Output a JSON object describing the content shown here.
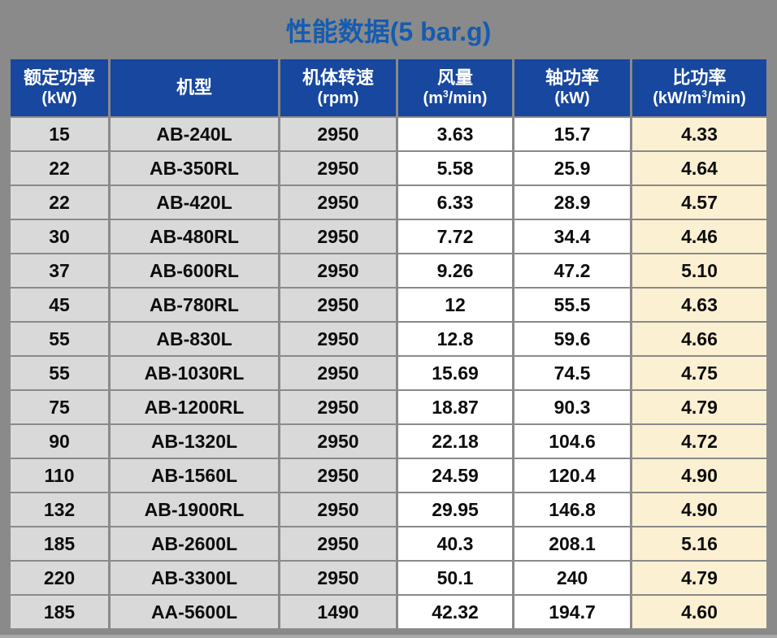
{
  "page": {
    "background_color": "#8a8a8a"
  },
  "title": {
    "text": "性能数据(5 bar.g)",
    "color": "#155CB0"
  },
  "table": {
    "header_bg_color": "#17479E",
    "header_text_color": "#FFFFFF",
    "gray_cell_color": "#D9D9D9",
    "white_cell_color": "#FFFFFF",
    "cream_cell_color": "#FCF0D2",
    "columns": [
      {
        "key": "rated-power",
        "title": "额定功率",
        "unit_pre": "(kW)"
      },
      {
        "key": "model",
        "title": "机型"
      },
      {
        "key": "speed",
        "title": "机体转速",
        "unit_pre": "(rpm)"
      },
      {
        "key": "air-flow",
        "title": "风量",
        "unit_pre": "(m",
        "unit_sup": "3",
        "unit_post": "/min)"
      },
      {
        "key": "shaft-power",
        "title": "轴功率",
        "unit_pre": "(kW)"
      },
      {
        "key": "specific-power",
        "title": "比功率",
        "unit_pre": "(kW/m",
        "unit_sup": "3",
        "unit_post": "/min)"
      }
    ],
    "rows": [
      [
        "15",
        "AB-240L",
        "2950",
        "3.63",
        "15.7",
        "4.33"
      ],
      [
        "22",
        "AB-350RL",
        "2950",
        "5.58",
        "25.9",
        "4.64"
      ],
      [
        "22",
        "AB-420L",
        "2950",
        "6.33",
        "28.9",
        "4.57"
      ],
      [
        "30",
        "AB-480RL",
        "2950",
        "7.72",
        "34.4",
        "4.46"
      ],
      [
        "37",
        "AB-600RL",
        "2950",
        "9.26",
        "47.2",
        "5.10"
      ],
      [
        "45",
        "AB-780RL",
        "2950",
        "12",
        "55.5",
        "4.63"
      ],
      [
        "55",
        "AB-830L",
        "2950",
        "12.8",
        "59.6",
        "4.66"
      ],
      [
        "55",
        "AB-1030RL",
        "2950",
        "15.69",
        "74.5",
        "4.75"
      ],
      [
        "75",
        "AB-1200RL",
        "2950",
        "18.87",
        "90.3",
        "4.79"
      ],
      [
        "90",
        "AB-1320L",
        "2950",
        "22.18",
        "104.6",
        "4.72"
      ],
      [
        "110",
        "AB-1560L",
        "2950",
        "24.59",
        "120.4",
        "4.90"
      ],
      [
        "132",
        "AB-1900RL",
        "2950",
        "29.95",
        "146.8",
        "4.90"
      ],
      [
        "185",
        "AB-2600L",
        "2950",
        "40.3",
        "208.1",
        "5.16"
      ],
      [
        "220",
        "AB-3300L",
        "2950",
        "50.1",
        "240",
        "4.79"
      ],
      [
        "185",
        "AA-5600L",
        "1490",
        "42.32",
        "194.7",
        "4.60"
      ]
    ]
  },
  "chart_data": {
    "type": "table",
    "title": "性能数据(5 bar.g)",
    "columns": [
      "额定功率 (kW)",
      "机型",
      "机体转速 (rpm)",
      "风量 (m3/min)",
      "轴功率 (kW)",
      "比功率 (kW/m3/min)"
    ],
    "rows": [
      [
        15,
        "AB-240L",
        2950,
        3.63,
        15.7,
        4.33
      ],
      [
        22,
        "AB-350RL",
        2950,
        5.58,
        25.9,
        4.64
      ],
      [
        22,
        "AB-420L",
        2950,
        6.33,
        28.9,
        4.57
      ],
      [
        30,
        "AB-480RL",
        2950,
        7.72,
        34.4,
        4.46
      ],
      [
        37,
        "AB-600RL",
        2950,
        9.26,
        47.2,
        5.1
      ],
      [
        45,
        "AB-780RL",
        2950,
        12,
        55.5,
        4.63
      ],
      [
        55,
        "AB-830L",
        2950,
        12.8,
        59.6,
        4.66
      ],
      [
        55,
        "AB-1030RL",
        2950,
        15.69,
        74.5,
        4.75
      ],
      [
        75,
        "AB-1200RL",
        2950,
        18.87,
        90.3,
        4.79
      ],
      [
        90,
        "AB-1320L",
        2950,
        22.18,
        104.6,
        4.72
      ],
      [
        110,
        "AB-1560L",
        2950,
        24.59,
        120.4,
        4.9
      ],
      [
        132,
        "AB-1900RL",
        2950,
        29.95,
        146.8,
        4.9
      ],
      [
        185,
        "AB-2600L",
        2950,
        40.3,
        208.1,
        5.16
      ],
      [
        220,
        "AB-3300L",
        2950,
        50.1,
        240,
        4.79
      ],
      [
        185,
        "AA-5600L",
        1490,
        42.32,
        194.7,
        4.6
      ]
    ]
  }
}
